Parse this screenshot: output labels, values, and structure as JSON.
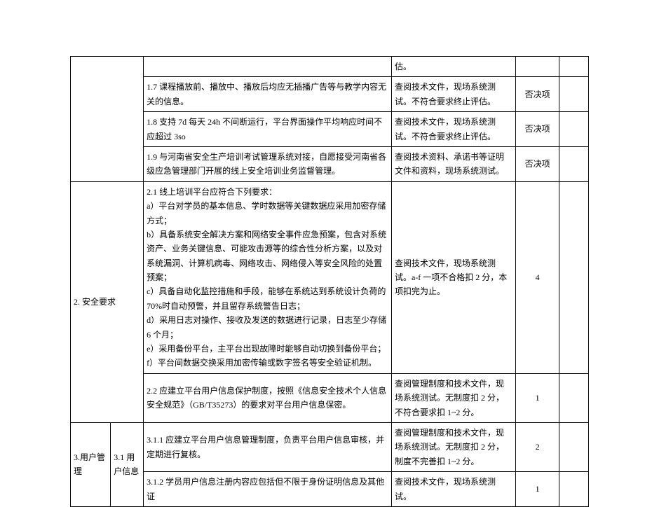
{
  "rows": {
    "r0": {
      "c": "",
      "d": "估。",
      "e": "",
      "f": ""
    },
    "r1": {
      "c": "1.7 课程播放前、播放中、播放后均应无插播广告等与教学内容无关的信息。",
      "d": "查阅技术文件，现场系统测试。不符合要求终止评估。",
      "e": "否决项",
      "f": ""
    },
    "r2": {
      "c": "1.8 支持 7d 每天 24h 不间断运行，平台界面操作平均响应时间不应超过 3so",
      "d": "查阅技术文件，现场系统测试。不符合要求终止评估。",
      "e": "否决项",
      "f": ""
    },
    "r3": {
      "c": "1.9 与河南省安全生产培训考试管理系统对接，自愿接受河南省各级应急管理部门开展的线上安全培训业务监督管理。",
      "d": "查阅技术资料、承诺书等证明文件和资料，现场系统测试。",
      "e": "否决项",
      "f": ""
    },
    "r4": {
      "a": "2. 安全要求",
      "c": "2.1 线上培训平台应符合下列要求：\na）平台对学员的基本信息、学时数据等关键数据应采用加密存储方式；\nb）具备系统安全解决方案和网络安全事件应急预案，包含对系统资产、业务关键信息、可能攻击源等的综合性分析方案，以及对系统漏洞、计算机病毒、网络攻击、网络侵入等安全风险的处置预案；\nc）具备自动化监控措施和手段，能够在系统达到系统设计负荷的 70%时自动预警，并且留存系统警告日志；\nd）采用日志对操作、接收及发送的数据进行记录，日志至少存储 6 个月；\ne）采用备份平台，主平台出现故障时能够自动切换到备份平台；f）平台间数据交换采用加密传输或数字签名等安全验证机制。",
      "d": "查阅技术文件，现场系统测试。a-f 一项不合格扣 2 分，本项扣完为止。",
      "e": "4",
      "f": ""
    },
    "r5": {
      "c": "2.2 应建立平台用户信息保护制度，按照《信息安全技术个人信息安全规范》（GB/T35273）的要求对平台用户信息保密。",
      "d": "查阅管理制度和技术文件，现场系统测试。无制度扣 2 分，不符合要求扣 1~2 分。",
      "e": "1",
      "f": ""
    },
    "r6": {
      "a": "3.用户管理",
      "b": "3.1 用户信息",
      "c": "3.1.1 应建立平台用户信息管理制度，负责平台用户信息审核，并定期进行复核。",
      "d": "查阅管理制度和技术文件，现场系统测试。无制度扣 2 分，制度不完善扣 1~2 分。",
      "e": "2",
      "f": ""
    },
    "r7": {
      "c": "3.1.2 学员用户信息注册内容应包括但不限于身份证明信息及其他证",
      "d": "查阅技术文件，现场系统测试。",
      "e": "1",
      "f": ""
    }
  }
}
